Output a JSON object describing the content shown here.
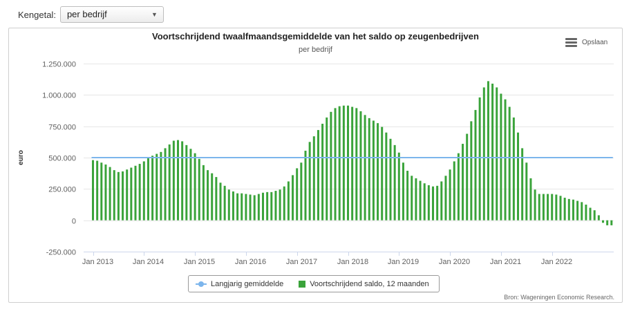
{
  "control": {
    "label": "Kengetal:",
    "selected": "per bedrijf"
  },
  "export": {
    "label": "Opslaan",
    "icon": "menu-icon"
  },
  "credits": "Bron: Wageningen Economic Research.",
  "chart_data": {
    "type": "bar",
    "title": "Voortschrijdend twaalfmaandsgemiddelde van het saldo op zeugenbedrijven",
    "subtitle": "per bedrijf",
    "ylabel": "euro",
    "xlabel": "",
    "ylim": [
      -250000,
      1250000
    ],
    "yticks": [
      -250000,
      0,
      250000,
      500000,
      750000,
      1000000,
      1250000
    ],
    "ytick_labels": [
      "-250.000",
      "0",
      "250.000",
      "500.000",
      "750.000",
      "1.000.000",
      "1.250.000"
    ],
    "x_start": "2013-01",
    "xtick_labels": [
      "Jan 2013",
      "Jan 2014",
      "Jan 2015",
      "Jan 2016",
      "Jan 2017",
      "Jan 2018",
      "Jan 2019",
      "Jan 2020",
      "Jan 2021",
      "Jan 2022"
    ],
    "grid": true,
    "legend_position": "bottom",
    "series": [
      {
        "name": "Langjarig gemiddelde",
        "type": "line",
        "color": "#7cb5ec",
        "value": 500000
      },
      {
        "name": "Voortschrijdend saldo, 12 maanden",
        "type": "bar",
        "color": "#3aa33a",
        "values": [
          480000,
          475000,
          460000,
          445000,
          425000,
          400000,
          385000,
          390000,
          405000,
          420000,
          435000,
          450000,
          470000,
          495000,
          515000,
          530000,
          545000,
          575000,
          605000,
          635000,
          640000,
          630000,
          600000,
          570000,
          535000,
          490000,
          440000,
          400000,
          375000,
          345000,
          300000,
          275000,
          245000,
          230000,
          215000,
          215000,
          210000,
          205000,
          200000,
          210000,
          220000,
          225000,
          225000,
          235000,
          245000,
          270000,
          310000,
          360000,
          415000,
          460000,
          555000,
          625000,
          670000,
          720000,
          770000,
          820000,
          865000,
          895000,
          910000,
          915000,
          915000,
          905000,
          895000,
          870000,
          840000,
          815000,
          795000,
          775000,
          745000,
          700000,
          650000,
          600000,
          540000,
          460000,
          395000,
          355000,
          335000,
          315000,
          295000,
          280000,
          270000,
          275000,
          310000,
          355000,
          405000,
          470000,
          535000,
          610000,
          690000,
          790000,
          880000,
          980000,
          1060000,
          1110000,
          1090000,
          1060000,
          1010000,
          965000,
          905000,
          820000,
          700000,
          575000,
          460000,
          335000,
          245000,
          210000,
          210000,
          210000,
          210000,
          205000,
          195000,
          180000,
          170000,
          165000,
          155000,
          145000,
          125000,
          100000,
          80000,
          40000,
          -20000,
          -40000,
          -40000
        ]
      }
    ]
  }
}
